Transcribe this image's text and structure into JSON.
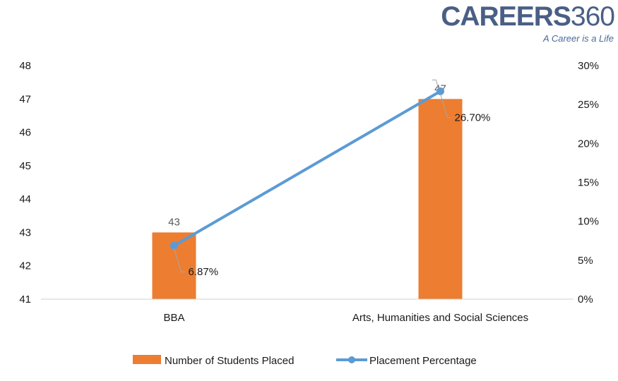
{
  "brand": {
    "logo_main": "CAREERS",
    "logo_num": "360",
    "tagline": "A Career is a Life"
  },
  "chart_data": {
    "type": "bar",
    "categories": [
      "BBA",
      "Arts, Humanities and Social Sciences"
    ],
    "series": [
      {
        "name": "Number of Students Placed",
        "type": "bar",
        "axis": "left",
        "values": [
          43,
          47
        ],
        "data_labels": [
          "43",
          "47"
        ],
        "color": "#ED7D31"
      },
      {
        "name": "Placement Percentage",
        "type": "line",
        "axis": "right",
        "values": [
          6.87,
          26.7
        ],
        "data_labels": [
          "6.87%",
          "26.70%"
        ],
        "color": "#5B9BD5"
      }
    ],
    "y_left": {
      "min": 41,
      "max": 48,
      "ticks": [
        "41",
        "42",
        "43",
        "44",
        "45",
        "46",
        "47",
        "48"
      ]
    },
    "y_right": {
      "min": 0,
      "max": 30,
      "ticks": [
        "0%",
        "5%",
        "10%",
        "15%",
        "20%",
        "25%",
        "30%"
      ]
    },
    "grid": false,
    "legend": "bottom",
    "title": "",
    "xlabel": "",
    "ylabel": ""
  }
}
